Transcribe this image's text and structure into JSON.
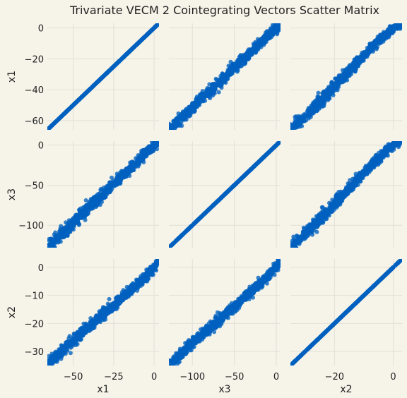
{
  "chart_data": {
    "type": "scatter",
    "title": "Trivariate VECM 2 Cointegrating Vectors Scatter Matrix",
    "variables": [
      "x1",
      "x3",
      "x2"
    ],
    "ranges": {
      "x1": [
        -66,
        3
      ],
      "x3": [
        -128,
        5
      ],
      "x2": [
        -35,
        3
      ]
    },
    "ticks": {
      "x1": {
        "row": [
          0,
          -20,
          -40,
          -60
        ],
        "col": [
          -50,
          -25,
          0
        ]
      },
      "x3": {
        "row": [
          0,
          -50,
          -100
        ],
        "col": [
          -100,
          -50,
          0
        ]
      },
      "x2": {
        "row": [
          0,
          -10,
          -20,
          -30
        ],
        "col": [
          -20,
          0
        ]
      }
    },
    "trend_points": {
      "x1": [
        -66,
        -50,
        -40,
        -30,
        -20,
        -10,
        -5,
        0,
        3
      ],
      "x3": [
        -128,
        -97,
        -77,
        -58,
        -39,
        -20,
        -10,
        0,
        5
      ],
      "x2": [
        -35,
        -26,
        -21,
        -16,
        -11,
        -6,
        -3,
        0,
        3
      ]
    },
    "grid": true,
    "point_color": "#0060bf",
    "background": "#f6f4e9",
    "grid_color": "#e1e0d8"
  }
}
